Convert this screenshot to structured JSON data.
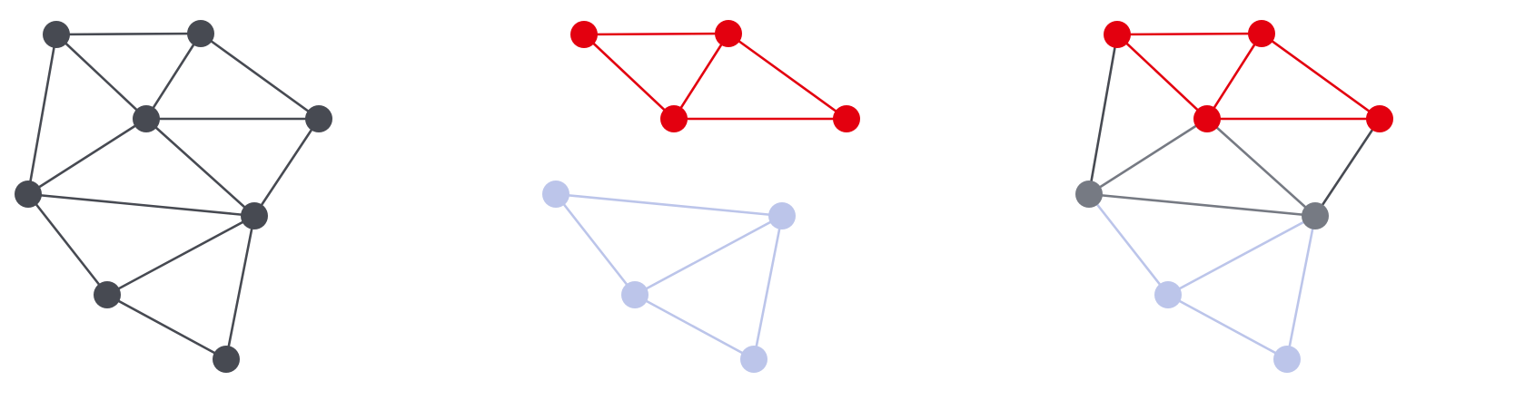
{
  "figure": {
    "description_free": true,
    "panels": [
      {
        "id": "full-graph",
        "name": "full-graph-panel",
        "node_style": "dark",
        "nodes": [
          {
            "id": "a",
            "style": "dark"
          },
          {
            "id": "b",
            "style": "dark"
          },
          {
            "id": "c",
            "style": "dark"
          },
          {
            "id": "d",
            "style": "dark"
          },
          {
            "id": "e",
            "style": "dark"
          },
          {
            "id": "f",
            "style": "dark"
          },
          {
            "id": "g",
            "style": "dark"
          },
          {
            "id": "h",
            "style": "dark"
          }
        ],
        "edges": [
          [
            "a",
            "b",
            "dark"
          ],
          [
            "a",
            "c",
            "dark"
          ],
          [
            "a",
            "e",
            "dark"
          ],
          [
            "b",
            "c",
            "dark"
          ],
          [
            "b",
            "d",
            "dark"
          ],
          [
            "c",
            "d",
            "dark"
          ],
          [
            "c",
            "e",
            "dark"
          ],
          [
            "c",
            "f",
            "dark"
          ],
          [
            "d",
            "f",
            "dark"
          ],
          [
            "e",
            "f",
            "dark"
          ],
          [
            "e",
            "g",
            "dark"
          ],
          [
            "f",
            "g",
            "dark"
          ],
          [
            "f",
            "h",
            "dark"
          ],
          [
            "g",
            "h",
            "dark"
          ]
        ]
      },
      {
        "id": "split-graph",
        "name": "split-subgraphs-panel",
        "nodes": [
          {
            "id": "a",
            "style": "red"
          },
          {
            "id": "b",
            "style": "red"
          },
          {
            "id": "c",
            "style": "red"
          },
          {
            "id": "d",
            "style": "red"
          },
          {
            "id": "e",
            "style": "blue"
          },
          {
            "id": "f",
            "style": "blue"
          },
          {
            "id": "g",
            "style": "blue"
          },
          {
            "id": "h",
            "style": "blue"
          }
        ],
        "edges": [
          [
            "a",
            "b",
            "red"
          ],
          [
            "a",
            "c",
            "red"
          ],
          [
            "b",
            "c",
            "red"
          ],
          [
            "b",
            "d",
            "red"
          ],
          [
            "c",
            "d",
            "red"
          ],
          [
            "e",
            "f",
            "blue"
          ],
          [
            "e",
            "g",
            "blue"
          ],
          [
            "f",
            "g",
            "blue"
          ],
          [
            "f",
            "h",
            "blue"
          ],
          [
            "g",
            "h",
            "blue"
          ]
        ]
      },
      {
        "id": "merged-graph",
        "name": "overlay-graph-panel",
        "nodes": [
          {
            "id": "a",
            "style": "red"
          },
          {
            "id": "b",
            "style": "red"
          },
          {
            "id": "c",
            "style": "red"
          },
          {
            "id": "d",
            "style": "red"
          },
          {
            "id": "e",
            "style": "gray"
          },
          {
            "id": "f",
            "style": "gray"
          },
          {
            "id": "g",
            "style": "blue"
          },
          {
            "id": "h",
            "style": "blue"
          }
        ],
        "edges": [
          [
            "a",
            "b",
            "red"
          ],
          [
            "a",
            "c",
            "red"
          ],
          [
            "b",
            "c",
            "red"
          ],
          [
            "b",
            "d",
            "red"
          ],
          [
            "c",
            "d",
            "red"
          ],
          [
            "a",
            "e",
            "dark"
          ],
          [
            "c",
            "e",
            "gray"
          ],
          [
            "c",
            "f",
            "gray"
          ],
          [
            "d",
            "f",
            "dark"
          ],
          [
            "e",
            "f",
            "gray"
          ],
          [
            "e",
            "g",
            "blue"
          ],
          [
            "f",
            "g",
            "blue"
          ],
          [
            "f",
            "h",
            "blue"
          ],
          [
            "g",
            "h",
            "blue"
          ]
        ]
      }
    ],
    "colors": {
      "dark": "#474a52",
      "red": "#e3000f",
      "blue": "#bcc5ea",
      "gray": "#767a83",
      "background": "#ffffff"
    }
  }
}
